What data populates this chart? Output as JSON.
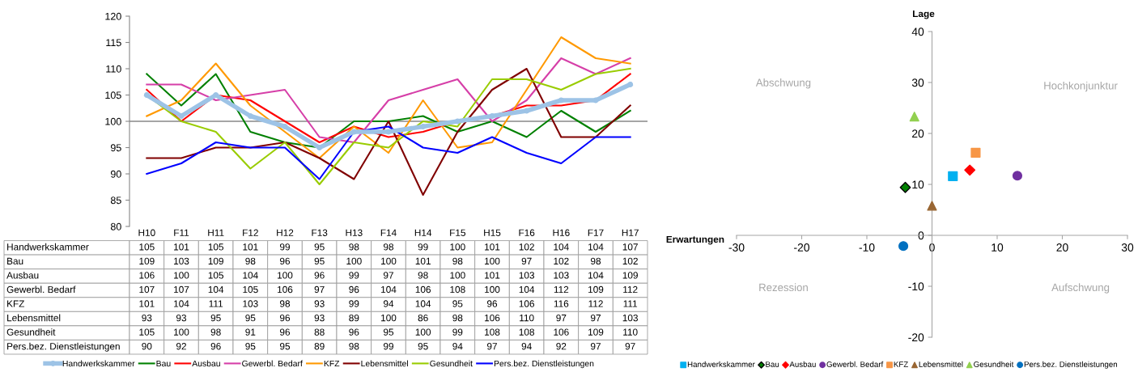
{
  "chart_data": [
    {
      "type": "line",
      "categories": [
        "H10",
        "F11",
        "H11",
        "F12",
        "H12",
        "F13",
        "H13",
        "F14",
        "H14",
        "F15",
        "H15",
        "F16",
        "H16",
        "F17",
        "H17"
      ],
      "ylim": [
        80,
        120
      ],
      "yticks": [
        80,
        85,
        90,
        95,
        100,
        105,
        110,
        115,
        120
      ],
      "data_labels": true,
      "legend": "bottom",
      "ref_lines": [
        {
          "axis": "y",
          "value": 100,
          "color": "#a6a6a6"
        }
      ],
      "series": [
        {
          "name": "Handwerkskammer",
          "color": "#9dc3e6",
          "marker": "circle",
          "values": [
            105,
            101,
            105,
            101,
            99,
            95,
            98,
            98,
            99,
            100,
            101,
            102,
            104,
            104,
            107
          ]
        },
        {
          "name": "Bau",
          "color": "#008000",
          "values": [
            109,
            103,
            109,
            98,
            96,
            95,
            100,
            100,
            101,
            98,
            100,
            97,
            102,
            98,
            102
          ]
        },
        {
          "name": "Ausbau",
          "color": "#ff0000",
          "values": [
            106,
            100,
            105,
            104,
            100,
            96,
            99,
            97,
            98,
            100,
            101,
            103,
            103,
            104,
            109
          ]
        },
        {
          "name": "Gewerbl. Bedarf",
          "color": "#d63fa8",
          "values": [
            107,
            107,
            104,
            105,
            106,
            97,
            96,
            104,
            106,
            108,
            100,
            104,
            112,
            109,
            112
          ]
        },
        {
          "name": "KFZ",
          "color": "#ff9900",
          "values": [
            101,
            104,
            111,
            103,
            98,
            93,
            99,
            94,
            104,
            95,
            96,
            106,
            116,
            112,
            111
          ]
        },
        {
          "name": "Lebensmittel",
          "color": "#800000",
          "values": [
            93,
            93,
            95,
            95,
            96,
            93,
            89,
            100,
            86,
            98,
            106,
            110,
            97,
            97,
            103
          ]
        },
        {
          "name": "Gesundheit",
          "color": "#99cc00",
          "values": [
            105,
            100,
            98,
            91,
            96,
            88,
            96,
            95,
            100,
            99,
            108,
            108,
            106,
            109,
            110
          ]
        },
        {
          "name": "Pers.bez. Dienstleistungen",
          "color": "#0000ff",
          "values": [
            90,
            92,
            96,
            95,
            95,
            89,
            98,
            99,
            95,
            94,
            97,
            94,
            92,
            97,
            97
          ]
        }
      ]
    },
    {
      "type": "scatter",
      "xlabel": "Erwartungen",
      "ylabel": "Lage",
      "xlim": [
        -30,
        30
      ],
      "ylim": [
        -20,
        40
      ],
      "xticks": [
        -30,
        -20,
        -10,
        0,
        10,
        20,
        30
      ],
      "yticks": [
        -20,
        -10,
        0,
        10,
        20,
        30,
        40
      ],
      "legend": "bottom",
      "annotations": [
        "Abschwung",
        "Hochkonjunktur",
        "Rezession",
        "Aufschwung"
      ],
      "series": [
        {
          "name": "Handwerkskammer",
          "color": "#00b0f0",
          "marker": "square",
          "x": [
            3.2
          ],
          "values": [
            11.6
          ]
        },
        {
          "name": "Bau",
          "color": "#008000",
          "marker": "diamond",
          "x": [
            -4.1
          ],
          "values": [
            9.4
          ]
        },
        {
          "name": "Ausbau",
          "color": "#ff0000",
          "marker": "diamond",
          "x": [
            5.8
          ],
          "values": [
            12.8
          ]
        },
        {
          "name": "Gewerbl. Bedarf",
          "color": "#7030a0",
          "marker": "circle",
          "x": [
            13.1
          ],
          "values": [
            11.7
          ]
        },
        {
          "name": "KFZ",
          "color": "#f79646",
          "marker": "square",
          "x": [
            6.7
          ],
          "values": [
            16.2
          ]
        },
        {
          "name": "Lebensmittel",
          "color": "#996633",
          "marker": "triangle",
          "x": [
            0.0
          ],
          "values": [
            5.8
          ]
        },
        {
          "name": "Gesundheit",
          "color": "#92d050",
          "marker": "triangle",
          "x": [
            -2.7
          ],
          "values": [
            23.3
          ]
        },
        {
          "name": "Pers.bez. Dienstleistungen",
          "color": "#0070c0",
          "marker": "circle",
          "x": [
            -4.4
          ],
          "values": [
            -2.1
          ]
        }
      ]
    }
  ]
}
